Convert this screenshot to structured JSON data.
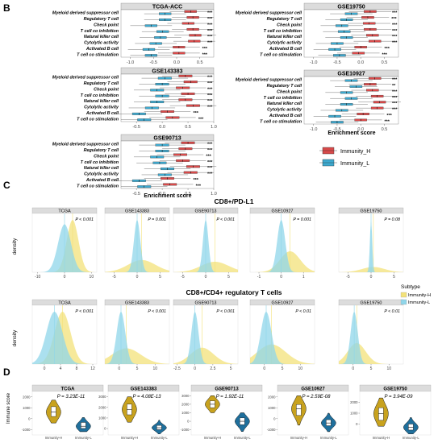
{
  "panels": {
    "B": "B",
    "C": "C",
    "D": "D"
  },
  "colors": {
    "immunity_h": "#d94a4a",
    "immunity_l": "#3da9cf",
    "density_h": "#f3e27a",
    "density_l": "#8fd6ea",
    "violin_h": "#c8a21e",
    "violin_l": "#1f6f9c",
    "strip": "#dcdcdc"
  },
  "chart_data": [
    {
      "type": "box",
      "panel": "B",
      "xlabel": "Enrichment score",
      "categories": [
        "Myeloid derived suppressor cell",
        "Regulatory T cell",
        "Check point",
        "T cell co inhibition",
        "Natural killer cell",
        "Cytolytic activity",
        "Activated B cell",
        "T cell co stimulation"
      ],
      "legend": [
        "Immunity_H",
        "Immunity_L"
      ],
      "facets": [
        {
          "title": "TCGA-ACC",
          "ticks": [
            -1.0,
            -0.5,
            0.0,
            0.5
          ],
          "xlim": [
            -1.2,
            0.8
          ],
          "h": [
            0.3,
            0.35,
            0.25,
            0.35,
            0.4,
            0.38,
            0.05,
            0.05
          ],
          "l": [
            -0.25,
            -0.25,
            -0.55,
            -0.3,
            -0.35,
            -0.45,
            -0.6,
            -0.55
          ],
          "sig": [
            "***",
            "***",
            "***",
            "***",
            "***",
            "***",
            "***",
            "***"
          ]
        },
        {
          "title": "GSE19750",
          "ticks": [
            -1.0,
            -0.5,
            0.0,
            0.5
          ],
          "xlim": [
            -1.2,
            0.8
          ],
          "h": [
            0.2,
            0.15,
            0.18,
            0.2,
            0.25,
            0.3,
            0.0,
            -0.05
          ],
          "l": [
            -0.2,
            -0.3,
            -0.4,
            -0.35,
            -0.3,
            -0.5,
            -0.55,
            -0.45
          ],
          "sig": [
            "***",
            "***",
            "***",
            "***",
            "***",
            "***",
            "***",
            "***"
          ]
        },
        {
          "title": "GSE143383",
          "ticks": [
            -0.5,
            0.0,
            0.5,
            1.0
          ],
          "xlim": [
            -0.8,
            1.0
          ],
          "h": [
            0.45,
            0.55,
            0.4,
            0.5,
            0.45,
            0.6,
            0.1,
            0.2
          ],
          "l": [
            0.05,
            0.0,
            -0.1,
            0.0,
            -0.1,
            -0.2,
            -0.45,
            -0.35
          ],
          "sig": [
            "***",
            "***",
            "***",
            "***",
            "***",
            "***",
            "***",
            "***"
          ]
        },
        {
          "title": "GSE10927",
          "ticks": [
            -1.0,
            -0.5,
            0.0,
            0.5
          ],
          "xlim": [
            -1.2,
            0.8
          ],
          "h": [
            0.3,
            0.2,
            0.25,
            0.35,
            0.4,
            0.35,
            0.05,
            0.0
          ],
          "l": [
            -0.2,
            -0.1,
            -0.3,
            -0.2,
            -0.3,
            -0.4,
            -0.55,
            -0.5
          ],
          "sig": [
            "***",
            "**",
            "***",
            "***",
            "***",
            "***",
            "***",
            "***"
          ]
        },
        {
          "title": "GSE90713",
          "ticks": [
            -0.5,
            0.0,
            0.5,
            1.0
          ],
          "xlim": [
            -0.8,
            1.0
          ],
          "h": [
            0.5,
            0.45,
            0.35,
            0.4,
            0.6,
            0.55,
            0.1,
            0.15
          ],
          "l": [
            0.0,
            0.0,
            -0.1,
            -0.05,
            0.1,
            0.05,
            -0.45,
            -0.35
          ],
          "sig": [
            "***",
            "***",
            "***",
            "***",
            "***",
            "***",
            "***",
            "***"
          ]
        }
      ]
    },
    {
      "type": "density",
      "panel": "C",
      "rows": [
        {
          "title": "CD8+/PD-L1",
          "ylabel": "density",
          "facets": [
            {
              "name": "TCGA",
              "p": "P < 0.001",
              "ticks": [
                -10,
                0,
                10
              ],
              "xlim": [
                -12,
                12
              ],
              "h": {
                "m": 3,
                "s": 2.2
              },
              "l": {
                "m": 0,
                "s": 2.4
              }
            },
            {
              "name": "GSE143383",
              "p": "P = 0.001",
              "ticks": [
                -5,
                0,
                5
              ],
              "xlim": [
                -7,
                7
              ],
              "h": {
                "m": 1,
                "s": 3.0
              },
              "l": {
                "m": 0,
                "s": 0.7
              }
            },
            {
              "name": "GSE90713",
              "p": "P < 0.001",
              "ticks": [
                -5,
                0,
                5
              ],
              "xlim": [
                -7,
                7
              ],
              "h": {
                "m": 2,
                "s": 3.0
              },
              "l": {
                "m": 0,
                "s": 0.6
              }
            },
            {
              "name": "GSE10927",
              "p": "P = 0.001",
              "ticks": [
                -1,
                0,
                1
              ],
              "xlim": [
                -1.4,
                1.5
              ],
              "h": {
                "m": 0.4,
                "s": 0.45
              },
              "l": {
                "m": 0,
                "s": 0.18
              }
            },
            {
              "name": "GSE19750",
              "p": "P = 0.08",
              "ticks": [
                -5,
                0,
                5
              ],
              "xlim": [
                -7,
                7
              ],
              "h": {
                "m": 0.5,
                "s": 2.5
              },
              "l": {
                "m": 0,
                "s": 0.25
              }
            }
          ]
        },
        {
          "title": "CD8+/CD4+ regulatory T cells",
          "ylabel": "density",
          "facets": [
            {
              "name": "TCGA",
              "p": "P < 0.001",
              "ticks": [
                0,
                4,
                8,
                12
              ],
              "xlim": [
                -3,
                13
              ],
              "h": {
                "m": 4.5,
                "s": 2.0
              },
              "l": {
                "m": 2.5,
                "s": 2.0
              }
            },
            {
              "name": "GSE143383",
              "p": "P < 0.001",
              "ticks": [
                0,
                5,
                10
              ],
              "xlim": [
                -4,
                14
              ],
              "h": {
                "m": 2,
                "s": 4.0
              },
              "l": {
                "m": 0.5,
                "s": 1.2
              }
            },
            {
              "name": "GSE90713",
              "p": "P < 0.001",
              "ticks": [
                -2.5,
                0.0,
                2.5,
                5.0
              ],
              "xlim": [
                -3,
                6
              ],
              "h": {
                "m": 1,
                "s": 1.6
              },
              "l": {
                "m": 0,
                "s": 0.5
              }
            },
            {
              "name": "GSE10927",
              "p": "P < 0.01",
              "ticks": [
                0,
                5,
                10
              ],
              "xlim": [
                -4,
                14
              ],
              "h": {
                "m": 2,
                "s": 4.0
              },
              "l": {
                "m": 0.5,
                "s": 1.5
              }
            },
            {
              "name": "GSE19750",
              "p": "P < 0.01",
              "ticks": [
                0,
                5,
                10
              ],
              "xlim": [
                -4,
                14
              ],
              "h": {
                "m": 1,
                "s": 2.5
              },
              "l": {
                "m": 0.3,
                "s": 1.0
              }
            }
          ]
        }
      ],
      "legend": {
        "title": "Subtype",
        "items": [
          "Immunity-H",
          "Immunity-L"
        ]
      }
    },
    {
      "type": "violin",
      "panel": "D",
      "ylabel": "Immune score",
      "categories": [
        "Immunity-H",
        "Immunity-L"
      ],
      "facets": [
        {
          "name": "TCGA",
          "p": "P = 3.23E-11",
          "ticks": [
            -1000,
            0,
            1000,
            2000
          ],
          "ylim": [
            -1500,
            2500
          ],
          "h": {
            "med": 600,
            "q1": 200,
            "q3": 1100,
            "lo": -400,
            "hi": 1700
          },
          "l": {
            "med": -700,
            "q1": -900,
            "q3": -350,
            "lo": -1200,
            "hi": 100
          }
        },
        {
          "name": "GSE143383",
          "p": "P = 4.08E-13",
          "ticks": [
            0,
            1000,
            2000,
            3000
          ],
          "ylim": [
            -600,
            3500
          ],
          "h": {
            "med": 1800,
            "q1": 1300,
            "q3": 2300,
            "lo": 600,
            "hi": 3000
          },
          "l": {
            "med": 80,
            "q1": -100,
            "q3": 300,
            "lo": -500,
            "hi": 800
          }
        },
        {
          "name": "GSE90713",
          "p": "P = 1.92E-11",
          "ticks": [
            -1000,
            0,
            1000,
            2000,
            3000
          ],
          "ylim": [
            -1600,
            3500
          ],
          "h": {
            "med": 2000,
            "q1": 1600,
            "q3": 2400,
            "lo": 1000,
            "hi": 3000
          },
          "l": {
            "med": 0,
            "q1": -400,
            "q3": 400,
            "lo": -1200,
            "hi": 1000
          }
        },
        {
          "name": "GSE10927",
          "p": "P = 2.59E-08",
          "ticks": [
            -1000,
            0,
            1000,
            2000
          ],
          "ylim": [
            -1500,
            2500
          ],
          "h": {
            "med": 900,
            "q1": 300,
            "q3": 1300,
            "lo": -600,
            "hi": 2100
          },
          "l": {
            "med": -400,
            "q1": -650,
            "q3": -100,
            "lo": -1200,
            "hi": 500
          }
        },
        {
          "name": "GSE19750",
          "p": "P = 3.94E-09",
          "ticks": [
            0,
            1000,
            2000
          ],
          "ylim": [
            -1000,
            3000
          ],
          "h": {
            "med": 950,
            "q1": 350,
            "q3": 1500,
            "lo": -200,
            "hi": 2400
          },
          "l": {
            "med": -300,
            "q1": -550,
            "q3": 0,
            "lo": -900,
            "hi": 600
          }
        }
      ]
    }
  ]
}
